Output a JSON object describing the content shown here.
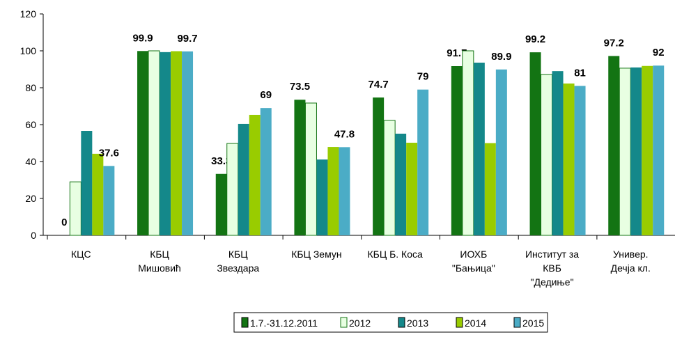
{
  "chart_data": {
    "type": "bar",
    "categories": [
      [
        "КЦС"
      ],
      [
        "КБЦ",
        "Мишовић"
      ],
      [
        "КБЦ",
        "Звездара"
      ],
      [
        "КБЦ Земун"
      ],
      [
        "КБЦ Б. Коса"
      ],
      [
        "ИОХБ",
        "\"Бањица\""
      ],
      [
        "Институт за",
        "КВБ",
        "\"Дедиње\""
      ],
      [
        "Универ.",
        "Дечја кл."
      ]
    ],
    "series": [
      {
        "name": "1.7.-31.12.2011",
        "color": "#137413",
        "show_labels": true,
        "values": [
          0,
          99.9,
          33.3,
          73.5,
          74.7,
          91.7,
          99.2,
          97.2
        ]
      },
      {
        "name": "2012",
        "color": "#e8ffe2",
        "values": [
          29,
          100,
          49.8,
          71.7,
          62.3,
          100,
          87.2,
          90.6
        ]
      },
      {
        "name": "2013",
        "color": "#14888a",
        "values": [
          56.6,
          99.3,
          60.4,
          41.1,
          55.1,
          93.6,
          89,
          91
        ]
      },
      {
        "name": "2014",
        "color": "#99cc00",
        "values": [
          44.2,
          99.8,
          65.3,
          47.9,
          50.2,
          50,
          82.3,
          91.8
        ]
      },
      {
        "name": "2015",
        "color": "#4bacc6",
        "show_labels": true,
        "values": [
          37.6,
          99.7,
          69,
          47.8,
          79,
          89.9,
          81,
          92
        ]
      }
    ],
    "ylim": [
      0,
      120
    ],
    "yticks": [
      0,
      20,
      40,
      60,
      80,
      100,
      120
    ],
    "legend": "bottom"
  }
}
